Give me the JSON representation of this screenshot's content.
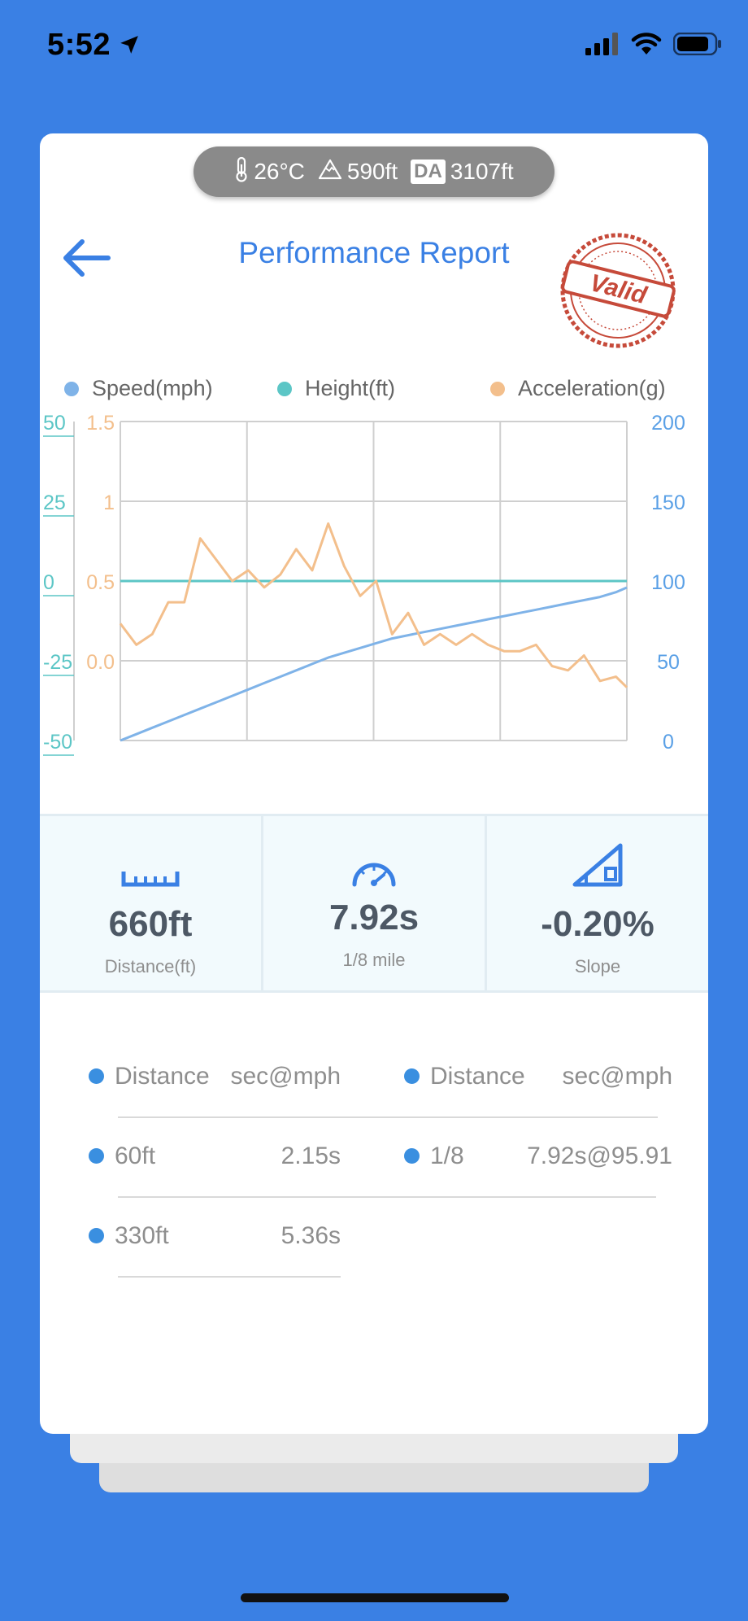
{
  "status_bar": {
    "time": "5:52",
    "icons": [
      "location-arrow-icon",
      "cellular-signal-icon",
      "wifi-icon",
      "battery-icon"
    ]
  },
  "environment": {
    "temperature": "26°C",
    "altitude": "590ft",
    "da_badge": "DA",
    "density_altitude": "3107ft"
  },
  "header": {
    "title": "Performance Report",
    "stamp_text": "Valid"
  },
  "colors": {
    "accent": "#3a80e4",
    "speed": "#7fb3e8",
    "height": "#5cc6c6",
    "acceleration": "#f3bf8c",
    "stamp": "#c64a3a"
  },
  "legend": [
    {
      "label": "Speed(mph)",
      "color": "#7fb3e8"
    },
    {
      "label": "Height(ft)",
      "color": "#5cc6c6"
    },
    {
      "label": "Acceleration(g)",
      "color": "#f3bf8c"
    }
  ],
  "chart_data": {
    "type": "line",
    "x": [
      0,
      0.25,
      0.5,
      0.75,
      1.0,
      1.25,
      1.5,
      1.75,
      2.0,
      2.25,
      2.5,
      2.75,
      3.0,
      3.25,
      3.5,
      3.75,
      4.0,
      4.25,
      4.5,
      4.75,
      5.0,
      5.25,
      5.5,
      5.75,
      6.0,
      6.25,
      6.5,
      6.75,
      7.0,
      7.25,
      7.5,
      7.75,
      7.92
    ],
    "xlim": [
      0,
      7.92
    ],
    "axes": {
      "height_left": {
        "ticks": [
          "50",
          "25",
          "0",
          "-25",
          "-50"
        ],
        "range": [
          -50,
          50
        ]
      },
      "acceleration_left": {
        "ticks": [
          "1.5",
          "1",
          "0.5",
          "0.0"
        ],
        "range": [
          0,
          1.5
        ]
      },
      "speed_right": {
        "ticks": [
          "200",
          "150",
          "100",
          "50",
          "0"
        ],
        "range": [
          0,
          200
        ]
      }
    },
    "series": [
      {
        "name": "Speed(mph)",
        "axis": "speed_right",
        "values": [
          0,
          4,
          8,
          12,
          16,
          20,
          24,
          28,
          32,
          36,
          40,
          44,
          48,
          52,
          55,
          58,
          61,
          64,
          66,
          68,
          70,
          72,
          74,
          76,
          78,
          80,
          82,
          84,
          86,
          88,
          90,
          93,
          95.91
        ]
      },
      {
        "name": "Height(ft)",
        "axis": "height_left",
        "values": [
          0,
          0,
          0,
          0,
          0,
          0,
          0,
          0,
          0,
          0,
          0,
          0,
          0,
          0,
          0,
          0,
          0,
          0,
          0,
          0,
          0,
          0,
          0,
          0,
          0,
          0,
          0,
          0,
          0,
          0,
          0,
          0,
          0
        ]
      },
      {
        "name": "Acceleration(g)",
        "axis": "acceleration_left",
        "values": [
          0.55,
          0.45,
          0.5,
          0.65,
          0.65,
          0.95,
          0.85,
          0.75,
          0.8,
          0.72,
          0.78,
          0.9,
          0.8,
          1.02,
          0.82,
          0.68,
          0.75,
          0.5,
          0.6,
          0.45,
          0.5,
          0.45,
          0.5,
          0.45,
          0.42,
          0.42,
          0.45,
          0.35,
          0.33,
          0.4,
          0.28,
          0.3,
          0.25
        ]
      }
    ],
    "grid": true,
    "legend_position": "top"
  },
  "stats": [
    {
      "icon": "ruler-icon",
      "value": "660ft",
      "label": "Distance(ft)"
    },
    {
      "icon": "speedometer-icon",
      "value": "7.92s",
      "label": "1/8 mile"
    },
    {
      "icon": "slope-icon",
      "value": "-0.20%",
      "label": "Slope"
    }
  ],
  "splits": {
    "left": [
      {
        "name": "Distance",
        "value": "sec@mph"
      },
      {
        "name": "60ft",
        "value": "2.15s"
      },
      {
        "name": "330ft",
        "value": "5.36s"
      }
    ],
    "right": [
      {
        "name": "Distance",
        "value": "sec@mph"
      },
      {
        "name": "1/8",
        "value": "7.92s@95.91"
      }
    ]
  }
}
